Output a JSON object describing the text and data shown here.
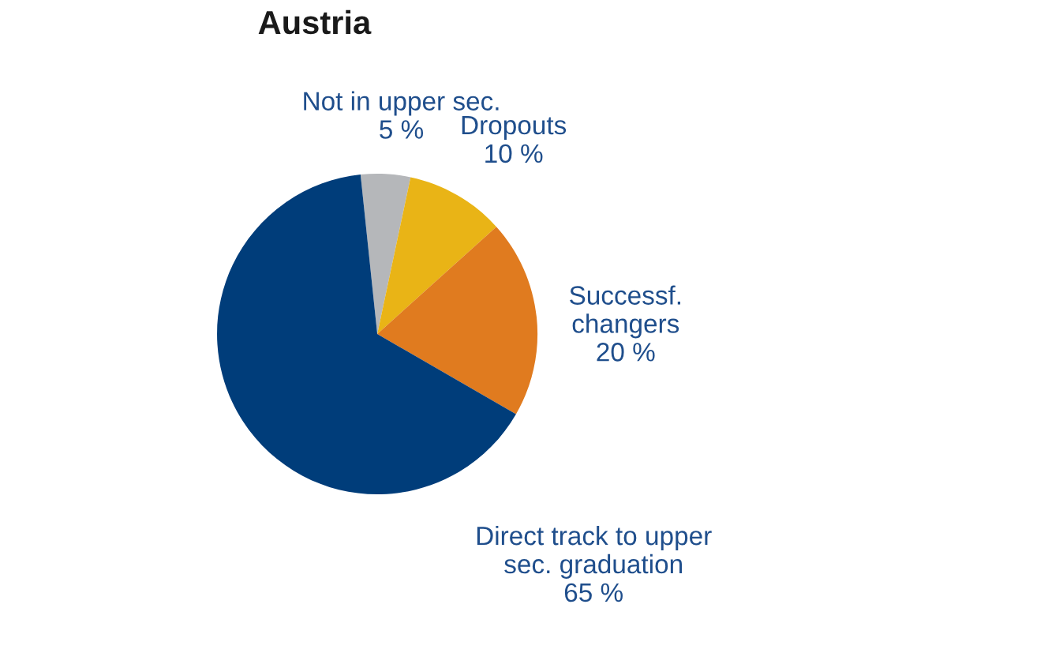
{
  "chart_data": {
    "type": "pie",
    "title": "Austria",
    "categories": [
      "Not in upper sec.",
      "Dropouts",
      "Successf.\nchangers",
      "Direct track to upper\nsec. graduation"
    ],
    "values": [
      5,
      10,
      20,
      65
    ],
    "value_labels": [
      "5 %",
      "10 %",
      "20 %",
      "65 %"
    ],
    "colors": [
      "#b5b7ba",
      "#e9b416",
      "#e07b1f",
      "#003d7a"
    ]
  }
}
